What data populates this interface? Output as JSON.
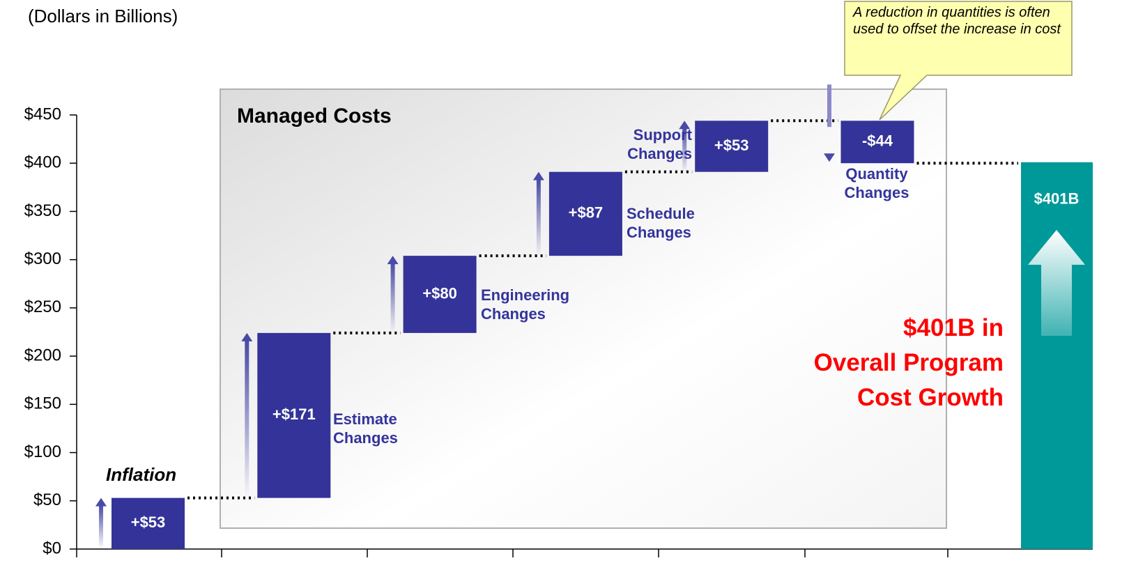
{
  "chart_data": {
    "type": "waterfall",
    "subtitle": "(Dollars in Billions)",
    "panel_label": "Managed Costs",
    "categories": [
      "Inflation",
      "Estimate Changes",
      "Engineering Changes",
      "Schedule Changes",
      "Support Changes",
      "Quantity Changes"
    ],
    "values": [
      53,
      171,
      80,
      87,
      53,
      -44
    ],
    "value_labels": [
      "+$53",
      "+$171",
      "+$80",
      "+$87",
      "+$53",
      "-$44"
    ],
    "color": "#333399",
    "total": {
      "value": 401,
      "value_label": "$401B",
      "color": "#009999"
    },
    "ylim": [
      0,
      450
    ],
    "yticks": [
      {
        "value": 0,
        "label": "$0"
      },
      {
        "value": 50,
        "label": "$50"
      },
      {
        "value": 100,
        "label": "$100"
      },
      {
        "value": 150,
        "label": "$150"
      },
      {
        "value": 200,
        "label": "$200"
      },
      {
        "value": 250,
        "label": "$250"
      },
      {
        "value": 300,
        "label": "$300"
      },
      {
        "value": 350,
        "label": "$350"
      },
      {
        "value": 400,
        "label": "$400"
      },
      {
        "value": 450,
        "label": "$450"
      }
    ],
    "callout": "A reduction in quantities is often used to offset the increase in cost",
    "growth_note": [
      "$401B in",
      "Overall Program",
      "Cost Growth"
    ]
  }
}
